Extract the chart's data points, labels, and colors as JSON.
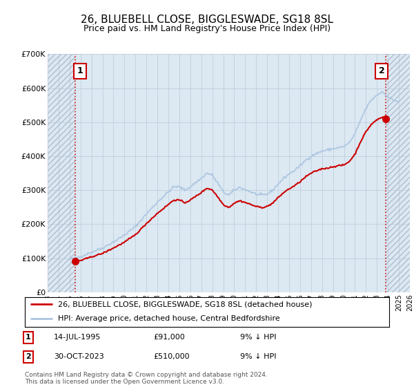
{
  "title": "26, BLUEBELL CLOSE, BIGGLESWADE, SG18 8SL",
  "subtitle": "Price paid vs. HM Land Registry's House Price Index (HPI)",
  "legend_line1": "26, BLUEBELL CLOSE, BIGGLESWADE, SG18 8SL (detached house)",
  "legend_line2": "HPI: Average price, detached house, Central Bedfordshire",
  "point1_label": "1",
  "point1_date": "14-JUL-1995",
  "point1_price": "£91,000",
  "point1_hpi": "9% ↓ HPI",
  "point2_label": "2",
  "point2_date": "30-OCT-2023",
  "point2_price": "£510,000",
  "point2_hpi": "9% ↓ HPI",
  "footer": "Contains HM Land Registry data © Crown copyright and database right 2024.\nThis data is licensed under the Open Government Licence v3.0.",
  "ylim": [
    0,
    700000
  ],
  "yticks": [
    0,
    100000,
    200000,
    300000,
    400000,
    500000,
    600000,
    700000
  ],
  "ytick_labels": [
    "£0",
    "£100K",
    "£200K",
    "£300K",
    "£400K",
    "£500K",
    "£600K",
    "£700K"
  ],
  "hpi_color": "#aac4e0",
  "price_color": "#cc0000",
  "marker_color": "#cc0000",
  "grid_color": "#c0d0e0",
  "hatch_color": "#c8d4e0",
  "bg_color": "#dce8f2",
  "point1_x": 1995.54,
  "point1_y": 91000,
  "point2_x": 2023.83,
  "point2_y": 510000,
  "xmin": 1993.0,
  "xmax": 2026.0,
  "hatch_left_end": 1995.54,
  "hatch_right_start": 2023.83
}
